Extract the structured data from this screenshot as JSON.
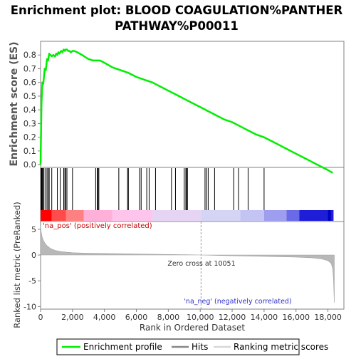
{
  "chart_data": {
    "type": "line",
    "title_line1": "Enrichment plot: BLOOD COAGULATION%PANTHER",
    "title_line2": "PATHWAY%P00011",
    "es_panel": {
      "ylabel": "Enrichment score (ES)",
      "ylim": [
        -0.02,
        0.9
      ],
      "yticks": [
        0.0,
        0.1,
        0.2,
        0.3,
        0.4,
        0.5,
        0.6,
        0.7,
        0.8
      ],
      "ytick_labels": [
        "0.0",
        "0.1",
        "0.2",
        "0.3",
        "0.4",
        "0.5",
        "0.6",
        "0.7",
        "0.8"
      ],
      "series": [
        {
          "name": "Enrichment profile",
          "color": "#00ee00",
          "x": [
            0,
            30,
            60,
            110,
            170,
            260,
            330,
            400,
            470,
            540,
            620,
            700,
            800,
            900,
            980,
            1050,
            1120,
            1180,
            1230,
            1300,
            1370,
            1450,
            1520,
            1580,
            1650,
            1720,
            1800,
            1900,
            2000,
            2100,
            2300,
            2600,
            3000,
            3300,
            3500,
            3700,
            3900,
            4200,
            4500,
            5000,
            5500,
            6000,
            6500,
            7000,
            7500,
            8000,
            8500,
            9000,
            9500,
            10000,
            10500,
            11000,
            11500,
            12000,
            12500,
            13000,
            13500,
            14000,
            14500,
            15000,
            15500,
            16000,
            16500,
            17000,
            17500,
            18000,
            18300
          ],
          "y": [
            0.0,
            0.26,
            0.45,
            0.6,
            0.59,
            0.7,
            0.69,
            0.77,
            0.76,
            0.81,
            0.8,
            0.79,
            0.8,
            0.79,
            0.81,
            0.8,
            0.82,
            0.81,
            0.82,
            0.83,
            0.82,
            0.84,
            0.83,
            0.84,
            0.84,
            0.83,
            0.83,
            0.82,
            0.83,
            0.83,
            0.82,
            0.8,
            0.77,
            0.76,
            0.76,
            0.76,
            0.75,
            0.73,
            0.71,
            0.69,
            0.67,
            0.64,
            0.62,
            0.6,
            0.57,
            0.54,
            0.51,
            0.48,
            0.45,
            0.42,
            0.39,
            0.36,
            0.33,
            0.31,
            0.28,
            0.25,
            0.22,
            0.2,
            0.17,
            0.14,
            0.11,
            0.08,
            0.05,
            0.02,
            -0.01,
            -0.04,
            -0.06
          ]
        }
      ]
    },
    "hits": [
      30,
      60,
      90,
      130,
      200,
      280,
      400,
      470,
      540,
      700,
      1050,
      1230,
      1450,
      1520,
      1580,
      1650,
      2000,
      3450,
      3550,
      3600,
      3650,
      4900,
      5450,
      5500,
      6200,
      6300,
      6650,
      6800,
      7200,
      8200,
      8450,
      9000,
      9100,
      9150,
      9200,
      10300,
      10400,
      10500,
      10900,
      12100,
      12400,
      13000,
      14000
    ],
    "heatmap_colors": [
      "#ff0000",
      "#ff4b4b",
      "#ff8080",
      "#ffb0d8",
      "#ffc4ec",
      "#e6d4f4",
      "#d4d4f4",
      "#c4c4f4",
      "#9e9ef0",
      "#6a6ae8",
      "#1e1ed8"
    ],
    "rank_panel": {
      "ylabel": "Ranked list metric (PreRanked)",
      "ylim": [
        -10.5,
        6.5
      ],
      "yticks": [
        -10,
        -5,
        0,
        5
      ],
      "ytick_labels": [
        "-10",
        "-5",
        "0",
        "5"
      ],
      "xlabel": "Rank in Ordered Dataset",
      "xlim": [
        0,
        19000
      ],
      "xticks": [
        0,
        2000,
        4000,
        6000,
        8000,
        10000,
        12000,
        14000,
        16000,
        18000
      ],
      "xtick_labels": [
        "0",
        "2,000",
        "4,000",
        "6,000",
        "8,000",
        "10,000",
        "12,000",
        "14,000",
        "16,000",
        "18,000"
      ],
      "metric_x": [
        0,
        30,
        80,
        150,
        250,
        400,
        600,
        900,
        1300,
        2000,
        3000,
        5000,
        7000,
        9000,
        10051,
        11500,
        13000,
        14500,
        16000,
        17000,
        17600,
        18000,
        18200,
        18300,
        18350,
        18400
      ],
      "metric_y": [
        5.6,
        4.6,
        3.7,
        3.0,
        2.4,
        1.8,
        1.3,
        0.9,
        0.65,
        0.45,
        0.35,
        0.25,
        0.15,
        0.06,
        0.0,
        -0.1,
        -0.2,
        -0.3,
        -0.4,
        -0.55,
        -0.75,
        -1.1,
        -1.6,
        -2.6,
        -4.6,
        -9.3
      ],
      "zero_cross_x": 10051,
      "zero_cross_label": "Zero cross at 10051",
      "pos_label": "'na_pos' (positively correlated)",
      "neg_label": "'na_neg' (negatively correlated)"
    },
    "legend": {
      "placement": "bottom",
      "items": [
        {
          "name": "Enrichment profile",
          "color": "#00ee00"
        },
        {
          "name": "Hits",
          "color": "#888888"
        },
        {
          "name": "Ranking metric scores",
          "color": "#d8d8d8"
        }
      ]
    },
    "colors": {
      "profile": "#00ee00",
      "axis": "#808080",
      "pos_label": "#c80000",
      "neg_label": "#3030c8",
      "metric_fill": "#b8b8b8"
    }
  }
}
